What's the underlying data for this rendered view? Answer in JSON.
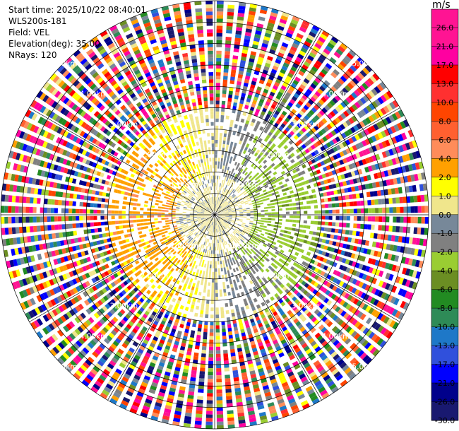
{
  "info": {
    "start_time": "Start time: 2025/10/22 08:40:01",
    "site": "WLS200s-181",
    "field": "Field: VEL",
    "elevation": "Elevation(deg): 35.00",
    "nrays": "NRays: 120"
  },
  "colorbar": {
    "unit": "m/s",
    "ticks": [
      "26.0",
      "21.0",
      "17.0",
      "13.0",
      "10.0",
      "8.0",
      "6.0",
      "4.0",
      "2.0",
      "1.0",
      "0.0",
      "-1.0",
      "-2.0",
      "-4.0",
      "-6.0",
      "-8.0",
      "-10.0",
      "-13.0",
      "-17.0",
      "-21.0",
      "-26.0",
      "-30.0"
    ],
    "colors": [
      "#ff1493",
      "#ff00a0",
      "#ff0000",
      "#ff3030",
      "#ff4500",
      "#ff6030",
      "#ff8c5a",
      "#ffa000",
      "#ffff00",
      "#f0e68c",
      "#778899",
      "#808080",
      "#9acd32",
      "#6b8e23",
      "#228b22",
      "#2e8b57",
      "#1e78c8",
      "#3050dc",
      "#0000ff",
      "#00008b",
      "#191970"
    ]
  },
  "chart_data": {
    "type": "heatmap",
    "subtype": "radar PPI (polar)",
    "field": "VEL",
    "units": "m/s",
    "nrays": 120,
    "elevation_deg": 35.0,
    "range_ring_labels": [
      "1.00km",
      "2.00km",
      "3.00km",
      "4.00km",
      "5.00km"
    ],
    "max_range_km": 5.0,
    "color_scale_min": -30.0,
    "color_scale_max": 26.0,
    "pattern": "inner region (<2.5 km): grey (~0 m/s) near center, yellow (+2 to +4 m/s) on west side, olive/green (-1 to -6 m/s) on east side; outer region: noisy multicolor"
  }
}
